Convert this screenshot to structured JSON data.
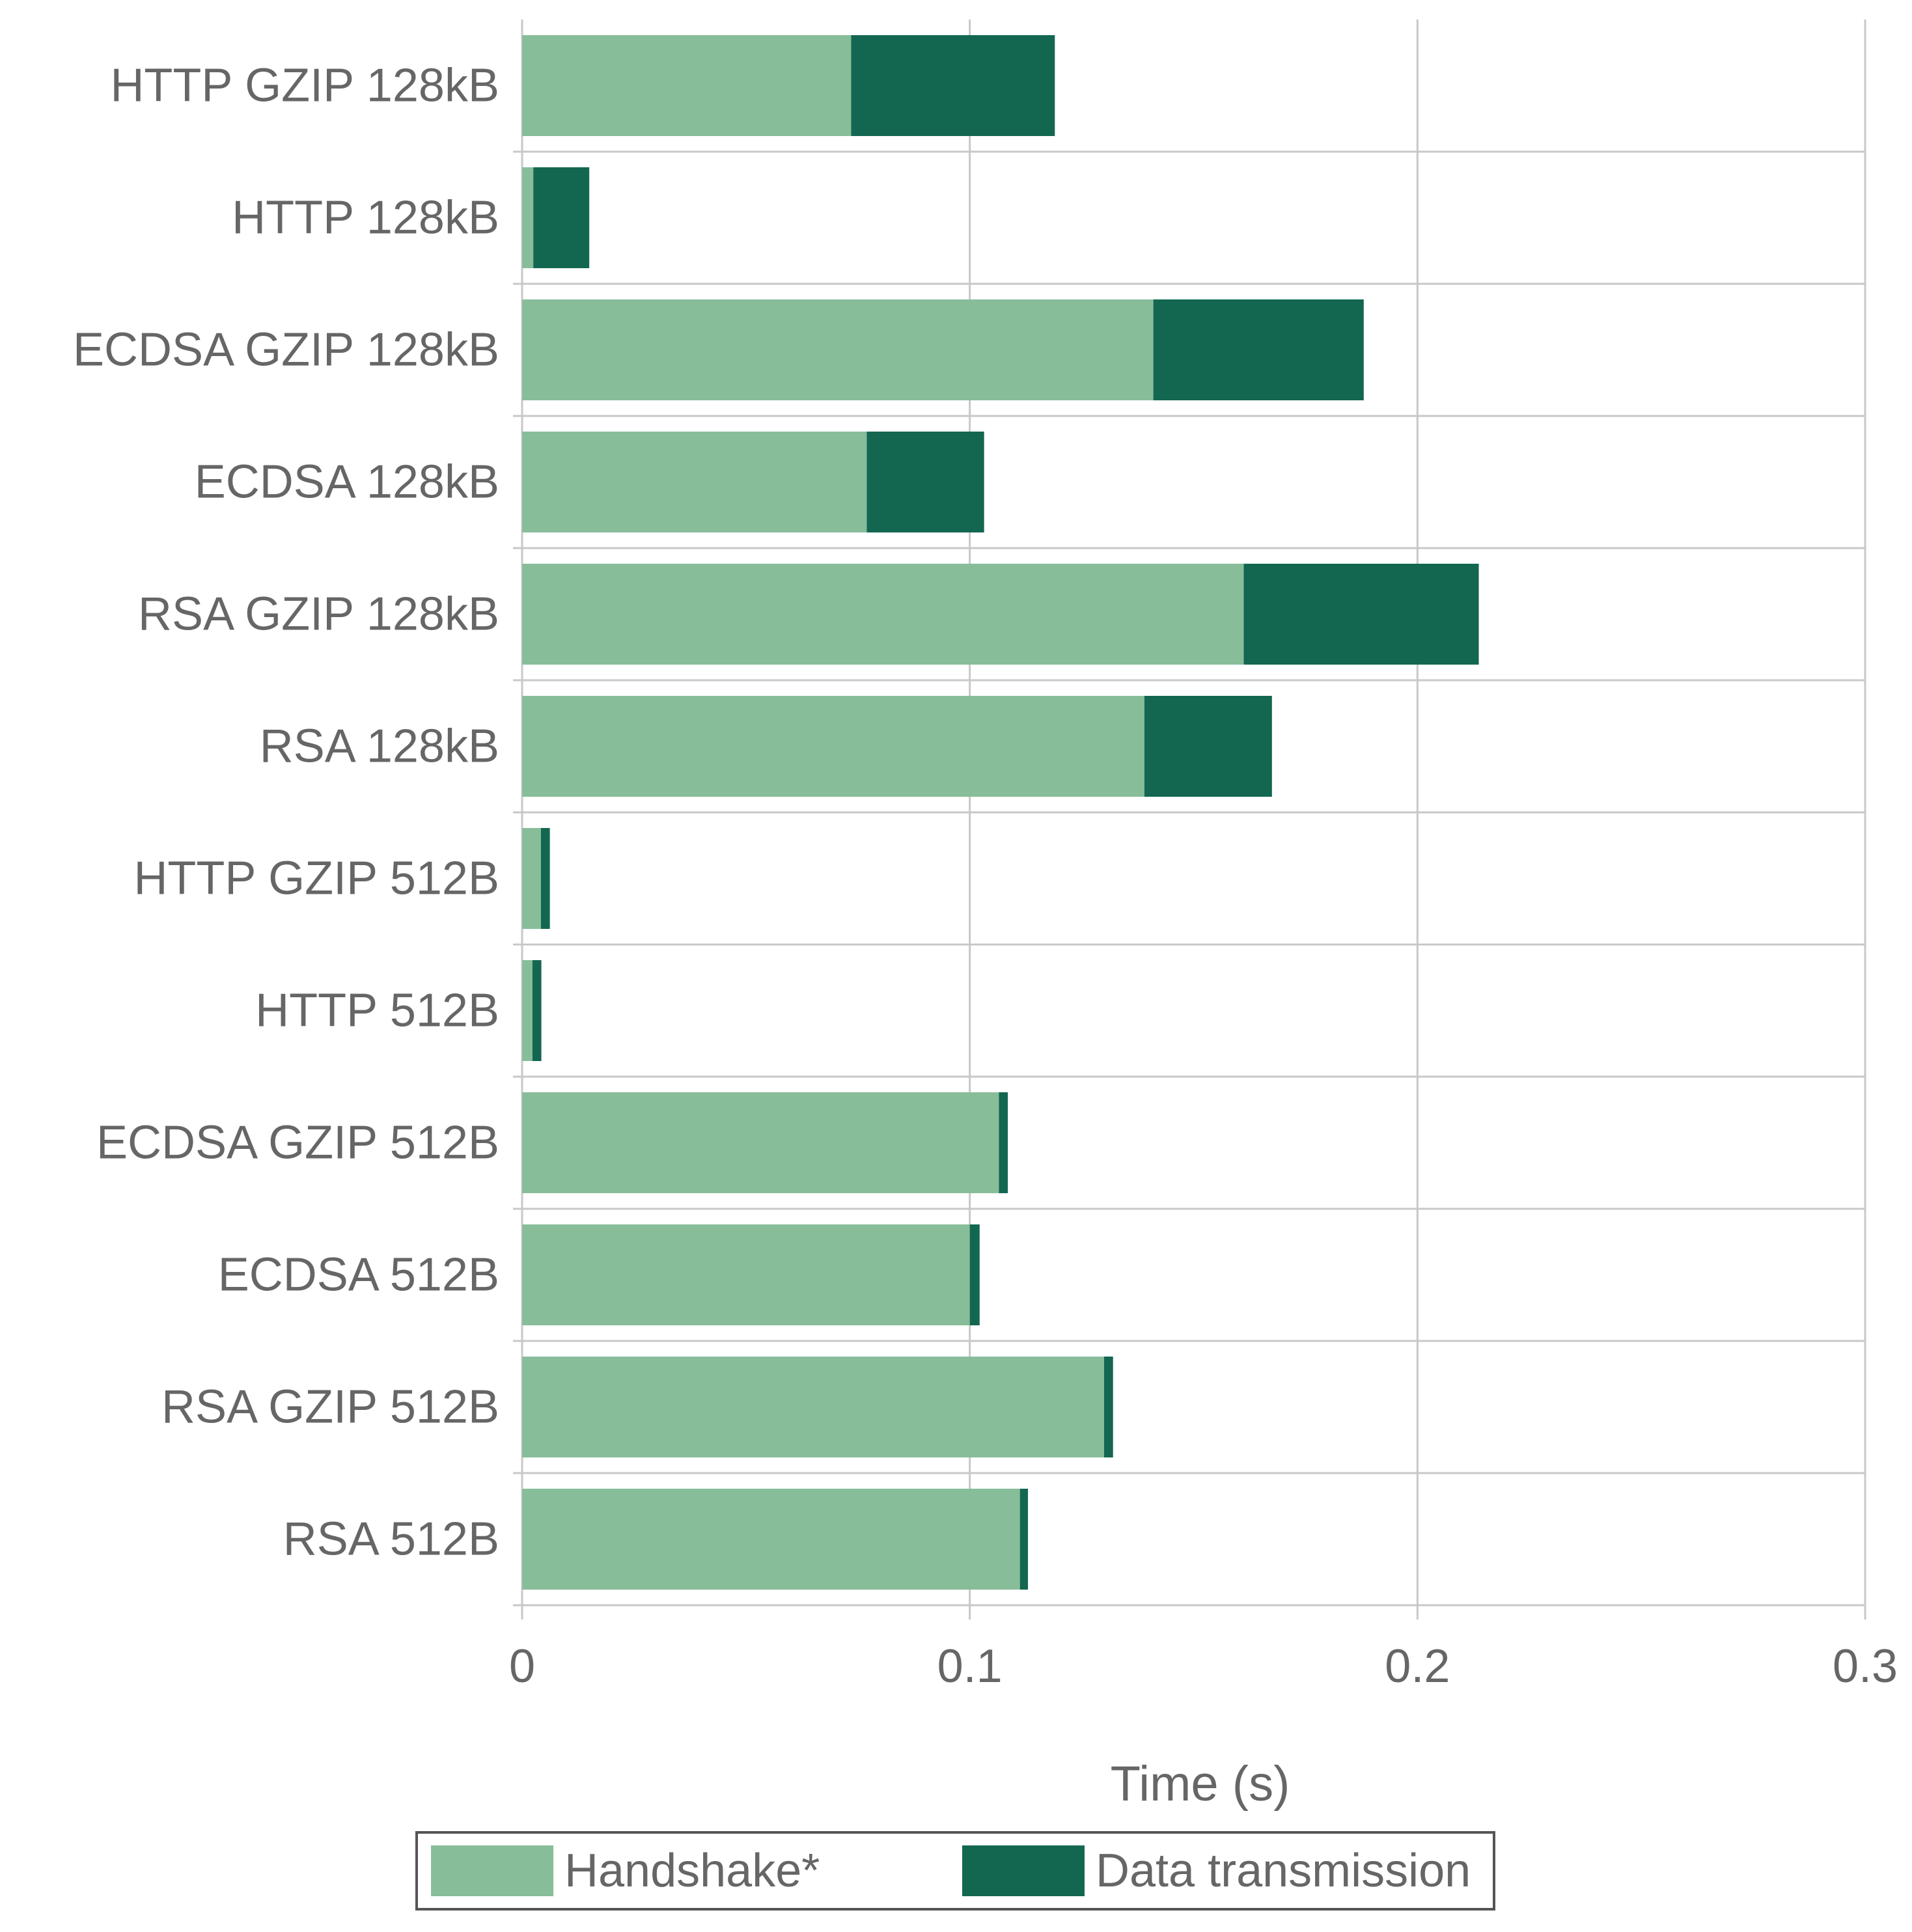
{
  "chart_data": {
    "type": "bar",
    "orientation": "horizontal",
    "stacked": true,
    "categories": [
      "HTTP GZIP 128kB",
      "HTTP 128kB",
      "ECDSA GZIP 128kB",
      "ECDSA 128kB",
      "RSA GZIP 128kB",
      "RSA 128kB",
      "HTTP GZIP 512B",
      "HTTP 512B",
      "ECDSA GZIP 512B",
      "ECDSA 512B",
      "RSA GZIP 512B",
      "RSA 512B"
    ],
    "series": [
      {
        "name": "Handshake*",
        "color": "#88bd9a",
        "values": [
          0.0735,
          0.0025,
          0.141,
          0.077,
          0.1612,
          0.139,
          0.0042,
          0.0023,
          0.1065,
          0.1,
          0.13,
          0.1112
        ]
      },
      {
        "name": "Data transmission",
        "color": "#136751",
        "values": [
          0.0455,
          0.0125,
          0.047,
          0.0262,
          0.0525,
          0.0285,
          0.002,
          0.002,
          0.002,
          0.0022,
          0.002,
          0.0018
        ]
      }
    ],
    "xlabel": "Time (s)",
    "ylabel": "",
    "xlim": [
      0,
      0.3
    ],
    "xticks": [
      0,
      0.1,
      0.2,
      0.3
    ],
    "xtick_labels": [
      "0",
      "0.1",
      "0.2",
      "0.3"
    ],
    "grid": true,
    "legend_position": "bottom-center",
    "colors": {
      "grid": "#c8c8c8",
      "text": "#666666",
      "legend_border": "#555555"
    }
  }
}
